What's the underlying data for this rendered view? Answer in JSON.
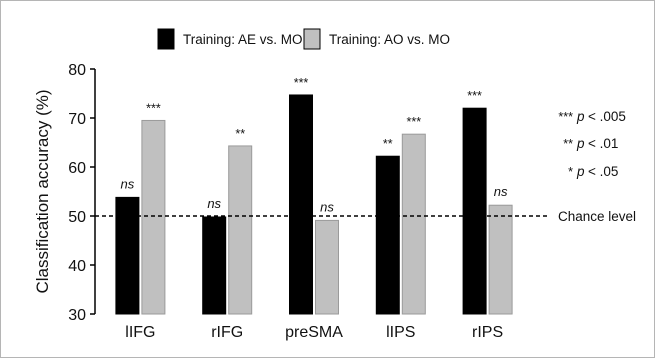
{
  "chart_data": {
    "type": "bar",
    "categories": [
      "lIFG",
      "rIFG",
      "preSMA",
      "lIPS",
      "rIPS"
    ],
    "series": [
      {
        "name": "Training: AE vs. MO",
        "color": "#000000",
        "values": [
          53.8,
          49.8,
          74.7,
          62.2,
          72.0
        ],
        "labels": [
          "ns",
          "ns",
          "***",
          "**",
          "***"
        ]
      },
      {
        "name": "Training: AO vs. MO",
        "color": "#c0c0c0",
        "values": [
          69.5,
          64.3,
          49.1,
          66.7,
          52.2
        ],
        "labels": [
          "***",
          "**",
          "ns",
          "***",
          "ns"
        ]
      }
    ],
    "ylabel": "Classification accuracy (%)",
    "xlabel": "",
    "ylim": [
      30,
      80
    ],
    "yticks": [
      30,
      40,
      50,
      60,
      70,
      80
    ],
    "reference_line": {
      "value": 50,
      "label": "Chance level",
      "style": "dashed"
    },
    "significance_key": [
      {
        "stars": "***",
        "p": "p",
        "rest": "< .005"
      },
      {
        "stars": "**",
        "p": "p",
        "rest": "< .01"
      },
      {
        "stars": "*",
        "p": "p",
        "rest": "< .05"
      }
    ],
    "legend_position": "top-center",
    "grid": false
  }
}
